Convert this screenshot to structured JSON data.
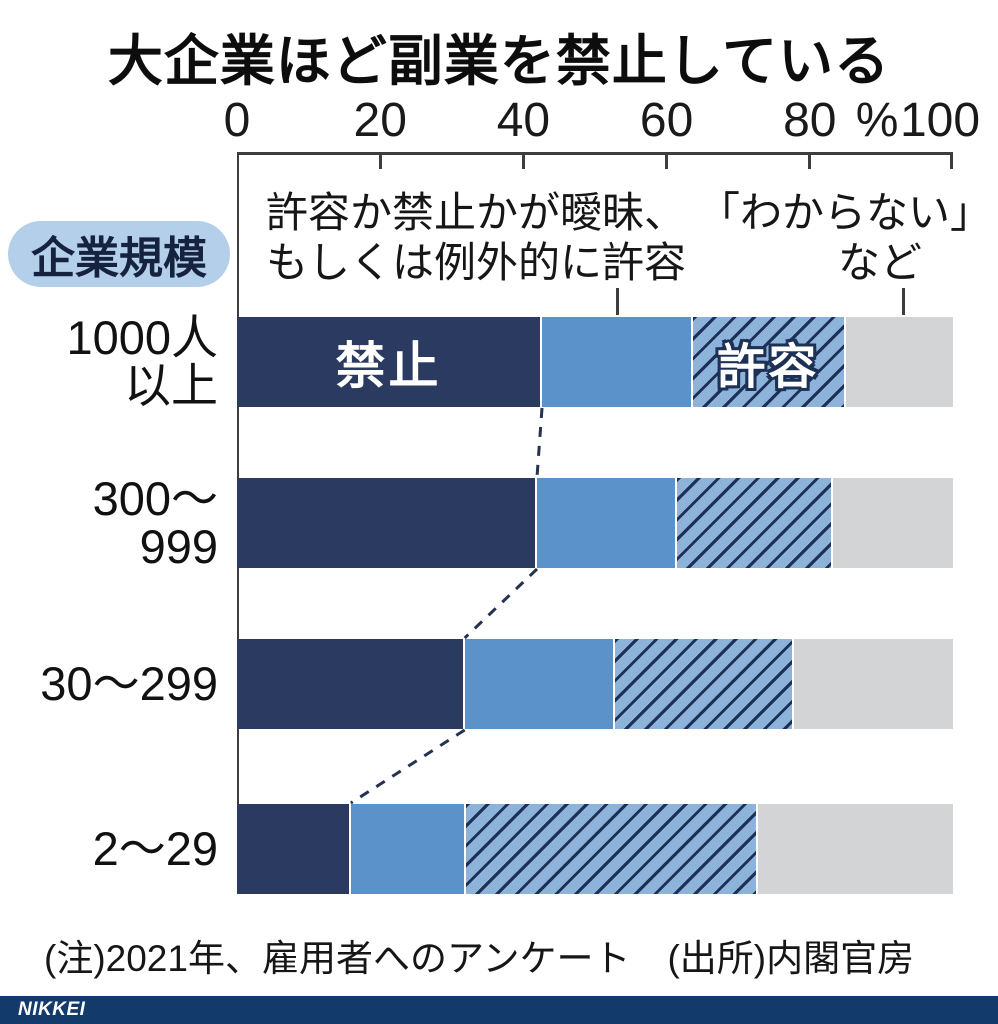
{
  "title": "大企業ほど副業を禁止している",
  "legend_label": "企業規模",
  "annotations": {
    "ambiguous_lines": [
      "許容か禁止かが曖昧、",
      "もしくは例外的に許容"
    ],
    "unknown_lines": [
      "「わからない」",
      "など"
    ]
  },
  "bar_labels": [
    {
      "row": 0,
      "segment": 0,
      "text": "禁止",
      "outlined": false
    },
    {
      "row": 0,
      "segment": 2,
      "text": "許容",
      "outlined": true
    }
  ],
  "note": "(注)2021年、雇用者へのアンケート　(出所)内閣官房",
  "footer_logo": "NIKKEI",
  "colors": {
    "ban": "#2b3a60",
    "ambiguous": "#5b92ca",
    "allow_bg": "#8db3da",
    "allow_hatch_line": "#1d3156",
    "unknown": "#d3d4d6",
    "pill_bg": "#b4cfe9",
    "footer_bg": "#123a6b",
    "connector": "#26324f"
  },
  "chart_data": {
    "type": "bar",
    "stacked": true,
    "orientation": "horizontal",
    "title": "大企業ほど副業を禁止している",
    "categories": [
      "1000人\n以上",
      "300〜\n999",
      "30〜299",
      "2〜29"
    ],
    "category_axis_label": "企業規模",
    "series": [
      {
        "name": "禁止",
        "values": [
          42.6,
          41.9,
          31.8,
          15.9
        ],
        "style": "solid-navy"
      },
      {
        "name": "許容か禁止かが曖昧、もしくは例外的に許容",
        "values": [
          21.1,
          19.6,
          21.0,
          16.1
        ],
        "style": "solid-blue"
      },
      {
        "name": "許容",
        "values": [
          21.3,
          21.8,
          25.0,
          40.8
        ],
        "style": "hatched-blue"
      },
      {
        "name": "「わからない」など",
        "values": [
          15.0,
          16.7,
          22.2,
          27.2
        ],
        "style": "solid-gray"
      }
    ],
    "xlim": [
      0,
      100
    ],
    "x_ticks": [
      0,
      20,
      40,
      60,
      80,
      100
    ],
    "unit": "%",
    "grid": false,
    "legend_position": "in-chart-annotations",
    "source_note": "(注)2021年、雇用者へのアンケート　(出所)内閣官房"
  }
}
